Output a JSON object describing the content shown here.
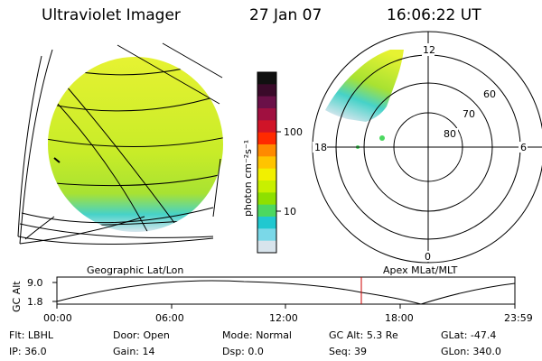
{
  "header": {
    "title": "Ultraviolet Imager",
    "date": "27 Jan 07",
    "time": "16:06:22 UT"
  },
  "colorbar": {
    "unit_label": "photon cm⁻²s⁻¹",
    "ticks": [
      "100",
      "10"
    ],
    "colors": [
      "#101010",
      "#3a0a2a",
      "#6a1048",
      "#a01040",
      "#d01428",
      "#ff2a00",
      "#ff8a00",
      "#ffc400",
      "#f2f000",
      "#c8f000",
      "#8ee000",
      "#4cd860",
      "#20c8d0",
      "#7ad8e8",
      "#d8e4ec"
    ]
  },
  "globe": {
    "caption": "Geographic Lat/Lon",
    "fill_colors": [
      "#e6f232",
      "#c8ec28",
      "#a8e232",
      "#46d2c8",
      "#d8e6ee"
    ]
  },
  "polar": {
    "caption": "Apex MLat/MLT",
    "mlt_labels": {
      "top": "12",
      "right": "6",
      "bottom": "0",
      "left": "18"
    },
    "lat_labels": [
      "60",
      "70",
      "80"
    ]
  },
  "altitude_plot": {
    "ylabel": "GC Alt",
    "yticks": [
      "9.0",
      "1.8"
    ],
    "xticks": [
      "00:00",
      "06:00",
      "12:00",
      "18:00",
      "23:59"
    ],
    "marker_color": "#cc0000"
  },
  "info": {
    "row1": [
      {
        "key": "Flt:",
        "value": "LBHL"
      },
      {
        "key": "Door:",
        "value": "Open"
      },
      {
        "key": "Mode:",
        "value": "Normal"
      },
      {
        "key": "GC Alt:",
        "value": "5.3 Re"
      },
      {
        "key": "GLat:",
        "value": "-47.4"
      }
    ],
    "row2": [
      {
        "key": "IP:",
        "value": "36.0"
      },
      {
        "key": "Gain:",
        "value": "14"
      },
      {
        "key": "Dsp:",
        "value": "0.0"
      },
      {
        "key": "Seq:",
        "value": "39"
      },
      {
        "key": "GLon:",
        "value": "340.0"
      }
    ]
  }
}
